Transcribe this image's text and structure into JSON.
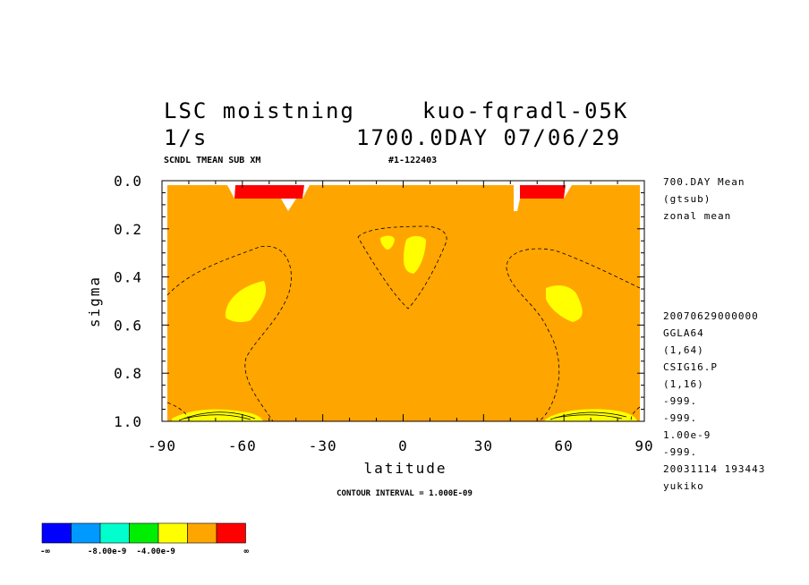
{
  "chart_data": {
    "type": "contour",
    "title": "LSC moistning",
    "subtitle_right": "kuo-fqradl-05K",
    "units": "1/s",
    "time_label": "1700.0DAY 07/06/29",
    "sub_left": "SCNDL TMEAN SUB XM",
    "sub_right": "#1-122403",
    "xlabel": "latitude",
    "ylabel": "sigma",
    "xlim": [
      -90,
      90
    ],
    "ylim": [
      1.0,
      0.0
    ],
    "x_ticks": [
      -90,
      -60,
      -30,
      0,
      30,
      60,
      90
    ],
    "x_tick_labels": [
      "-90",
      "-60",
      "-30",
      "0",
      "30",
      "60",
      "90"
    ],
    "y_ticks": [
      0.0,
      0.2,
      0.4,
      0.6,
      0.8,
      1.0
    ],
    "y_tick_labels": [
      "0.0",
      "0.2",
      "0.4",
      "0.6",
      "0.8",
      "1.0"
    ],
    "contour_interval": "CONTOUR INTERVAL = 1.000E-09",
    "background_fill_color": "#ffa500",
    "regions": [
      {
        "level": "positive",
        "color": "#ff0000",
        "lat": [
          -62,
          -38
        ],
        "sigma": [
          0.02,
          0.07
        ]
      },
      {
        "level": "positive",
        "color": "#ff0000",
        "lat": [
          43,
          60
        ],
        "sigma": [
          0.02,
          0.07
        ]
      },
      {
        "level": "negative",
        "color": "#ffff00",
        "lat": [
          -65,
          -50
        ],
        "sigma": [
          0.42,
          0.58
        ]
      },
      {
        "level": "negative",
        "color": "#ffff00",
        "lat": [
          52,
          68
        ],
        "sigma": [
          0.43,
          0.58
        ]
      },
      {
        "level": "negative",
        "color": "#ffff00",
        "lat": [
          -8,
          -3
        ],
        "sigma": [
          0.23,
          0.29
        ]
      },
      {
        "level": "negative",
        "color": "#ffff00",
        "lat": [
          0,
          8
        ],
        "sigma": [
          0.23,
          0.38
        ]
      },
      {
        "level": "negative",
        "color": "#ffff00",
        "lat": [
          -85,
          -55
        ],
        "sigma": [
          0.95,
          1.0
        ]
      },
      {
        "level": "negative",
        "color": "#ffff00",
        "lat": [
          55,
          85
        ],
        "sigma": [
          0.95,
          1.0
        ]
      }
    ],
    "right_info": [
      "700.DAY Mean",
      "(gtsub)",
      "zonal mean"
    ],
    "right_meta": [
      "20070629000000",
      "GGLA64",
      "(1,64)",
      "CSIG16.P",
      "(1,16)",
      "-999.",
      "-999.",
      "1.00e-9",
      "-999.",
      "20031114 193443",
      "yukiko"
    ],
    "colorbar": {
      "colors": [
        "#0000ff",
        "#0099ff",
        "#00ffcc",
        "#00ee00",
        "#ffff00",
        "#ffa500",
        "#ff0000"
      ],
      "labels": [
        "-∞",
        "-8.00e-9",
        "-4.00e-9",
        "∞"
      ]
    }
  }
}
